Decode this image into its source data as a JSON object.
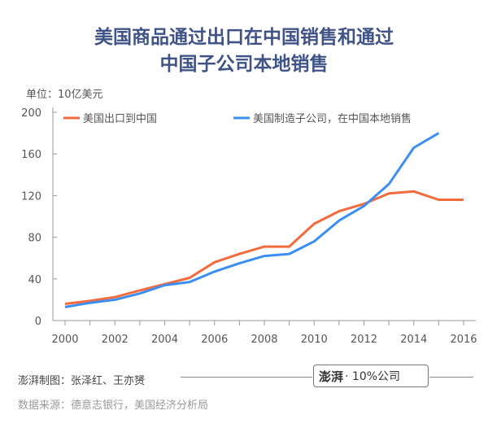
{
  "title_lines": [
    "美国商品通过出口在中国销售和通过",
    "中国子公司本地销售"
  ],
  "unit_label": "单位：10亿美元",
  "chart_data": {
    "type": "line",
    "x": [
      2000,
      2001,
      2002,
      2003,
      2004,
      2005,
      2006,
      2007,
      2008,
      2009,
      2010,
      2011,
      2012,
      2013,
      2014,
      2015,
      2016
    ],
    "series": [
      {
        "name": "美国出口到中国",
        "color": "#f26b3d",
        "values": [
          16,
          19,
          22.5,
          29,
          35,
          41,
          56,
          64,
          71,
          71,
          93,
          105,
          112,
          122,
          124,
          116,
          116
        ]
      },
      {
        "name": "美国制造子公司，在中国本地销售",
        "color": "#3b8ff2",
        "values": [
          13,
          17,
          20,
          26,
          34,
          37,
          47,
          55,
          62,
          64,
          76,
          96,
          110,
          131,
          166,
          180,
          null
        ]
      }
    ],
    "xlim": [
      2000,
      2016
    ],
    "ylim": [
      0,
      200
    ],
    "x_ticks": [
      2000,
      2002,
      2004,
      2006,
      2008,
      2010,
      2012,
      2014,
      2016
    ],
    "y_ticks": [
      0,
      40,
      80,
      120,
      160,
      200
    ],
    "legend": "top",
    "grid": false
  },
  "footer": {
    "credit": "澎湃制图：张泽红、王亦赟",
    "brand_logo": "澎湃",
    "brand_text": "· 10%公司",
    "source": "数据来源：德意志银行，美国经济分析局"
  }
}
